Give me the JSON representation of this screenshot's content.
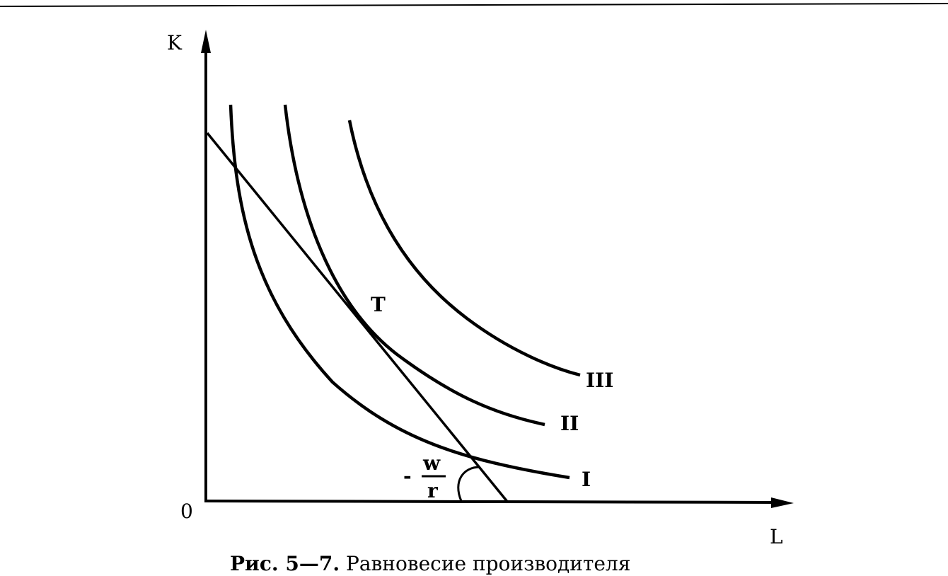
{
  "diagram": {
    "axis_y_label": "K",
    "axis_x_label": "L",
    "origin_label": "0",
    "tangency_label": "T",
    "isoquants": [
      {
        "label": "I"
      },
      {
        "label": "II"
      },
      {
        "label": "III"
      }
    ],
    "slope_label": {
      "sign": "-",
      "numerator": "w",
      "denominator": "r"
    },
    "caption_prefix": "Рис. 5—7.",
    "caption_text": " Равновесие производителя"
  }
}
